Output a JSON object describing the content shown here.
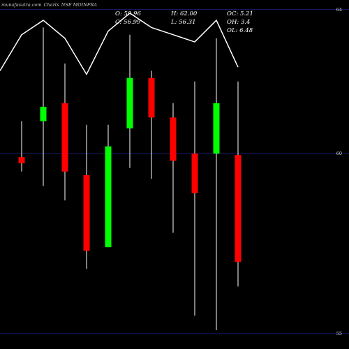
{
  "credit": {
    "site": "munafasutra.com",
    "source": "Charts",
    "title": "NSE MOINFRA"
  },
  "ohlc": {
    "open": "O: 59.96",
    "high": "H: 62.00",
    "oc": "OC: 5.21",
    "close": "C: 56.99",
    "low": "L: 56.31",
    "oh": "OH: 3.4",
    "ol": "OL: 6.48"
  },
  "chart_data": {
    "type": "candlestick",
    "ylim": [
      55,
      64
    ],
    "y_ticks": [
      {
        "label": "64",
        "value": 64
      },
      {
        "label": "60",
        "value": 60
      },
      {
        "label": "55",
        "value": 55
      }
    ],
    "candles": [
      {
        "open": 59.9,
        "high": 60.9,
        "low": 59.5,
        "close": 59.73,
        "color": "red"
      },
      {
        "open": 60.9,
        "high": 63.5,
        "low": 59.1,
        "close": 61.3,
        "color": "green"
      },
      {
        "open": 61.4,
        "high": 62.5,
        "low": 58.7,
        "close": 59.5,
        "color": "red"
      },
      {
        "open": 59.4,
        "high": 60.8,
        "low": 56.8,
        "close": 57.3,
        "color": "red"
      },
      {
        "open": 57.4,
        "high": 60.8,
        "low": 57.4,
        "close": 60.2,
        "color": "green"
      },
      {
        "open": 60.7,
        "high": 63.3,
        "low": 59.6,
        "close": 62.1,
        "color": "green"
      },
      {
        "open": 62.1,
        "high": 62.3,
        "low": 59.3,
        "close": 61.0,
        "color": "red"
      },
      {
        "open": 61.0,
        "high": 61.4,
        "low": 57.8,
        "close": 59.8,
        "color": "red"
      },
      {
        "open": 60.0,
        "high": 62.0,
        "low": 55.5,
        "close": 58.9,
        "color": "red"
      },
      {
        "open": 60.0,
        "high": 63.2,
        "low": 55.1,
        "close": 61.4,
        "color": "green"
      },
      {
        "open": 59.96,
        "high": 62.0,
        "low": 56.31,
        "close": 56.99,
        "color": "red"
      }
    ],
    "line_series": [
      62.3,
      63.3,
      63.7,
      63.2,
      62.2,
      63.4,
      63.9,
      63.5,
      63.3,
      63.1,
      63.7,
      62.4
    ]
  },
  "colors": {
    "up": "#00ff00",
    "down": "#ff0000",
    "wick": "#ffffff",
    "grid": "#1a1a6e",
    "line": "#ffffff",
    "background": "#000000"
  }
}
